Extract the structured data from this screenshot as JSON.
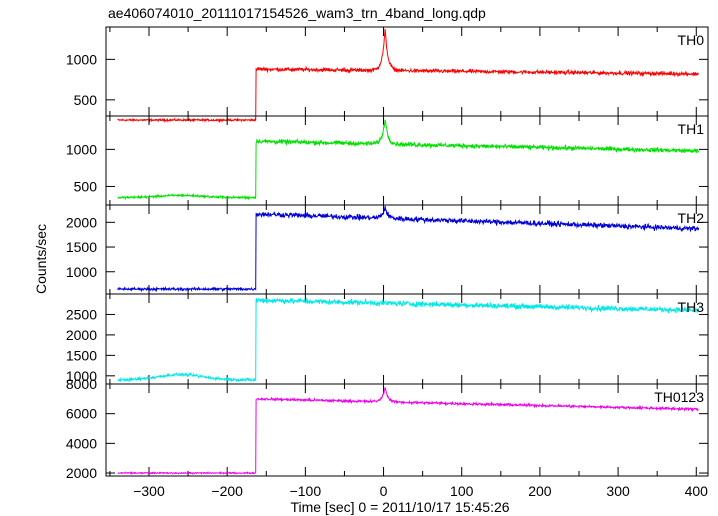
{
  "title": "ae406074010_20111017154526_wam3_trn_4band_long.qdp",
  "chart_data": {
    "type": "line",
    "title": "ae406074010_20111017154526_wam3_trn_4band_long.qdp",
    "xlabel": "Time [sec] 0 = 2011/10/17 15:45:26",
    "ylabel": "Counts/sec",
    "xlim": [
      -355,
      415
    ],
    "xticks": [
      -300,
      -200,
      -100,
      0,
      100,
      200,
      300,
      400
    ],
    "xtick_labels": [
      "−300",
      "−200",
      "−100",
      "0",
      "100",
      "200",
      "300",
      "400"
    ],
    "data_x_range": [
      -340,
      403
    ],
    "step_time": -163,
    "grid": false,
    "panels": [
      {
        "name": "TH0",
        "color": "#ff0000",
        "ylim": [
          300,
          1400
        ],
        "yticks": [
          500,
          1000
        ],
        "pre_level": 250,
        "post_start": 880,
        "post_end": 820,
        "noise": 20,
        "peak_value": 1370,
        "peak_time": 2
      },
      {
        "name": "TH1",
        "color": "#00e000",
        "ylim": [
          250,
          1450
        ],
        "yticks": [
          500,
          1000
        ],
        "pre_level": 350,
        "pre_bump": 30,
        "post_start": 1110,
        "post_end": 980,
        "noise": 25,
        "peak_value": 1420,
        "peak_time": 2
      },
      {
        "name": "TH2",
        "color": "#0000dd",
        "ylim": [
          550,
          2350
        ],
        "yticks": [
          1000,
          1500,
          2000
        ],
        "pre_level": 650,
        "post_start": 2170,
        "post_end": 1870,
        "noise": 45,
        "peak_value": 2300,
        "peak_time": 2
      },
      {
        "name": "TH3",
        "color": "#00e8e8",
        "ylim": [
          800,
          3000
        ],
        "yticks": [
          1000,
          1500,
          2000,
          2500
        ],
        "pre_level": 900,
        "pre_bump": 130,
        "post_start": 2850,
        "post_end": 2600,
        "noise": 55
      },
      {
        "name": "TH0123",
        "color": "#ee00ee",
        "ylim": [
          1800,
          8000
        ],
        "yticks": [
          2000,
          4000,
          6000,
          8000
        ],
        "pre_level": 2000,
        "post_start": 7000,
        "post_end": 6300,
        "noise": 70,
        "peak_value": 7800,
        "peak_time": 2
      }
    ]
  }
}
